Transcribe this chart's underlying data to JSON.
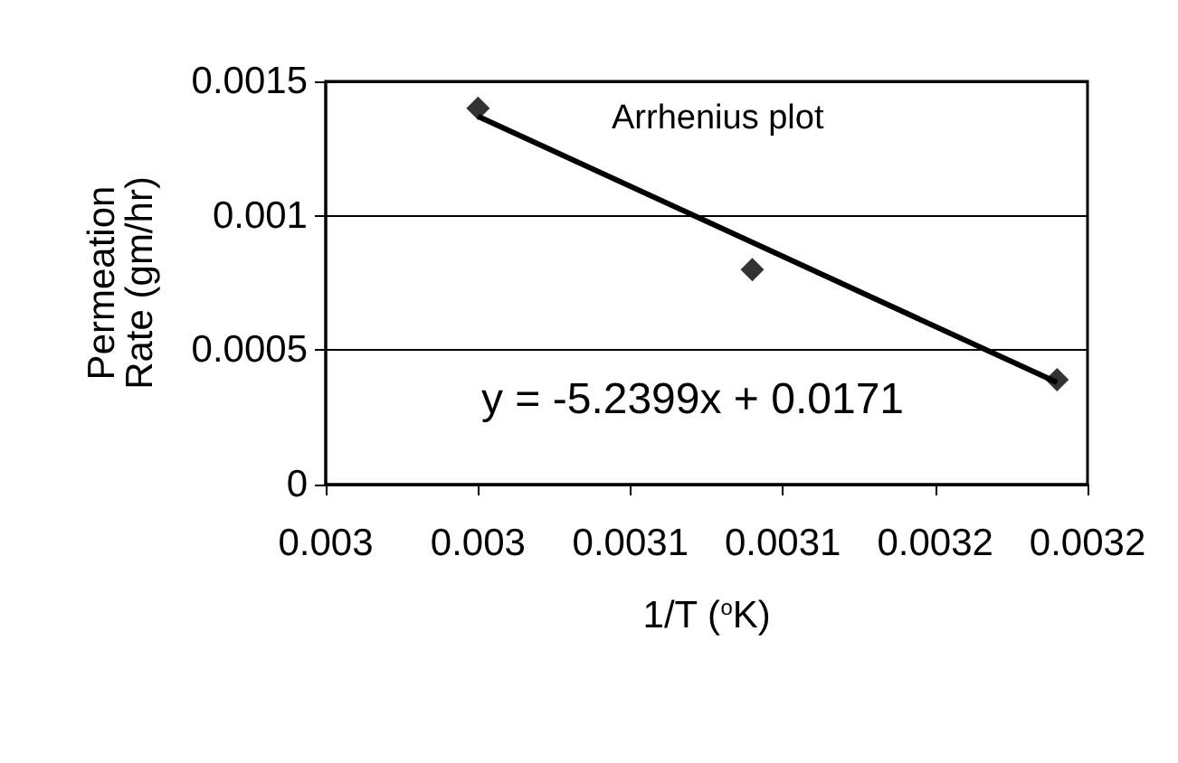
{
  "chart_data": {
    "type": "scatter",
    "xlabel": "1/T ($^{o}$K)",
    "ylabel": "Permeation\nRate (gm/hr)",
    "annotations": [
      "Arrhenius plot",
      "y = -5.2399x + 0.0171"
    ],
    "xlim": [
      0.00295,
      0.0032
    ],
    "xticks": [
      {
        "value": 0.00295,
        "label": "0.003"
      },
      {
        "value": 0.003,
        "label": "0.003"
      },
      {
        "value": 0.00305,
        "label": "0.0031"
      },
      {
        "value": 0.0031,
        "label": "0.0031"
      },
      {
        "value": 0.00315,
        "label": "0.0032"
      },
      {
        "value": 0.0032,
        "label": "0.0032"
      }
    ],
    "ylim": [
      0,
      0.0015
    ],
    "yticks": [
      0,
      0.0005,
      0.001,
      0.0015
    ],
    "grid": "y",
    "series": [
      {
        "marker": "diamond",
        "color": "#000000",
        "x": [
          0.003,
          0.00309,
          0.00319
        ],
        "values": [
          0.0014,
          0.0008,
          0.00039
        ]
      },
      {
        "type": "line",
        "marker": "none",
        "color": "#000000",
        "x": [
          0.003,
          0.00319
        ],
        "values": [
          0.00137,
          0.00038
        ]
      }
    ]
  }
}
